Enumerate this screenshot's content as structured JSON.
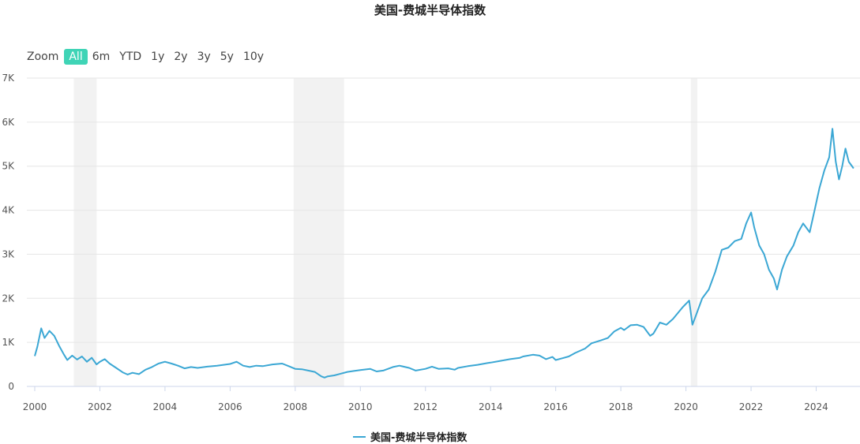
{
  "chart_data": {
    "type": "line",
    "title": "美国-费城半导体指数",
    "series": [
      {
        "name": "美国-费城半导体指数",
        "color": "#3ba7d4",
        "points": [
          [
            2000.0,
            690
          ],
          [
            2000.08,
            900
          ],
          [
            2000.2,
            1320
          ],
          [
            2000.3,
            1100
          ],
          [
            2000.45,
            1260
          ],
          [
            2000.6,
            1150
          ],
          [
            2000.75,
            920
          ],
          [
            2000.9,
            720
          ],
          [
            2001.0,
            600
          ],
          [
            2001.15,
            700
          ],
          [
            2001.3,
            610
          ],
          [
            2001.45,
            680
          ],
          [
            2001.6,
            560
          ],
          [
            2001.75,
            650
          ],
          [
            2001.9,
            500
          ],
          [
            2002.0,
            560
          ],
          [
            2002.15,
            620
          ],
          [
            2002.3,
            520
          ],
          [
            2002.5,
            420
          ],
          [
            2002.7,
            320
          ],
          [
            2002.85,
            270
          ],
          [
            2003.0,
            310
          ],
          [
            2003.2,
            280
          ],
          [
            2003.4,
            380
          ],
          [
            2003.6,
            440
          ],
          [
            2003.8,
            520
          ],
          [
            2004.0,
            560
          ],
          [
            2004.2,
            520
          ],
          [
            2004.4,
            470
          ],
          [
            2004.6,
            410
          ],
          [
            2004.8,
            440
          ],
          [
            2005.0,
            420
          ],
          [
            2005.3,
            450
          ],
          [
            2005.6,
            470
          ],
          [
            2005.8,
            490
          ],
          [
            2006.0,
            510
          ],
          [
            2006.2,
            560
          ],
          [
            2006.4,
            470
          ],
          [
            2006.6,
            440
          ],
          [
            2006.8,
            470
          ],
          [
            2007.0,
            460
          ],
          [
            2007.3,
            500
          ],
          [
            2007.6,
            520
          ],
          [
            2007.8,
            460
          ],
          [
            2008.0,
            400
          ],
          [
            2008.2,
            390
          ],
          [
            2008.4,
            360
          ],
          [
            2008.6,
            330
          ],
          [
            2008.8,
            230
          ],
          [
            2008.9,
            200
          ],
          [
            2009.0,
            230
          ],
          [
            2009.2,
            250
          ],
          [
            2009.4,
            290
          ],
          [
            2009.6,
            330
          ],
          [
            2009.8,
            350
          ],
          [
            2010.0,
            370
          ],
          [
            2010.3,
            400
          ],
          [
            2010.5,
            340
          ],
          [
            2010.7,
            360
          ],
          [
            2011.0,
            440
          ],
          [
            2011.2,
            470
          ],
          [
            2011.5,
            420
          ],
          [
            2011.7,
            360
          ],
          [
            2012.0,
            400
          ],
          [
            2012.2,
            450
          ],
          [
            2012.4,
            400
          ],
          [
            2012.7,
            410
          ],
          [
            2012.9,
            380
          ],
          [
            2013.0,
            420
          ],
          [
            2013.3,
            460
          ],
          [
            2013.6,
            490
          ],
          [
            2013.9,
            530
          ],
          [
            2014.0,
            540
          ],
          [
            2014.3,
            580
          ],
          [
            2014.6,
            620
          ],
          [
            2014.9,
            650
          ],
          [
            2015.0,
            680
          ],
          [
            2015.3,
            720
          ],
          [
            2015.5,
            700
          ],
          [
            2015.7,
            620
          ],
          [
            2015.9,
            670
          ],
          [
            2016.0,
            600
          ],
          [
            2016.2,
            640
          ],
          [
            2016.4,
            680
          ],
          [
            2016.6,
            760
          ],
          [
            2016.9,
            860
          ],
          [
            2017.1,
            980
          ],
          [
            2017.4,
            1050
          ],
          [
            2017.6,
            1100
          ],
          [
            2017.8,
            1250
          ],
          [
            2018.0,
            1330
          ],
          [
            2018.1,
            1280
          ],
          [
            2018.3,
            1390
          ],
          [
            2018.5,
            1400
          ],
          [
            2018.7,
            1350
          ],
          [
            2018.9,
            1150
          ],
          [
            2019.0,
            1200
          ],
          [
            2019.2,
            1450
          ],
          [
            2019.4,
            1400
          ],
          [
            2019.6,
            1530
          ],
          [
            2019.9,
            1800
          ],
          [
            2020.1,
            1950
          ],
          [
            2020.2,
            1400
          ],
          [
            2020.3,
            1600
          ],
          [
            2020.5,
            2000
          ],
          [
            2020.7,
            2200
          ],
          [
            2020.9,
            2600
          ],
          [
            2021.1,
            3100
          ],
          [
            2021.3,
            3150
          ],
          [
            2021.5,
            3300
          ],
          [
            2021.7,
            3350
          ],
          [
            2021.85,
            3700
          ],
          [
            2022.0,
            3950
          ],
          [
            2022.1,
            3600
          ],
          [
            2022.25,
            3200
          ],
          [
            2022.4,
            3000
          ],
          [
            2022.55,
            2650
          ],
          [
            2022.7,
            2450
          ],
          [
            2022.8,
            2200
          ],
          [
            2022.95,
            2650
          ],
          [
            2023.1,
            2950
          ],
          [
            2023.3,
            3200
          ],
          [
            2023.45,
            3500
          ],
          [
            2023.6,
            3700
          ],
          [
            2023.8,
            3500
          ],
          [
            2023.95,
            4000
          ],
          [
            2024.1,
            4500
          ],
          [
            2024.25,
            4900
          ],
          [
            2024.4,
            5200
          ],
          [
            2024.5,
            5850
          ],
          [
            2024.6,
            5100
          ],
          [
            2024.7,
            4700
          ],
          [
            2024.8,
            5000
          ],
          [
            2024.9,
            5400
          ],
          [
            2025.0,
            5100
          ],
          [
            2025.15,
            4950
          ]
        ]
      }
    ],
    "xticks": [
      "2000",
      "2002",
      "2004",
      "2006",
      "2008",
      "2010",
      "2012",
      "2014",
      "2016",
      "2018",
      "2020",
      "2022",
      "2024"
    ],
    "yticks": [
      "0",
      "1K",
      "2K",
      "3K",
      "4K",
      "5K",
      "6K",
      "7K"
    ],
    "xlim": [
      2000,
      2025.2
    ],
    "ylim": [
      0,
      7000
    ],
    "recession_bands": [
      [
        2001.2,
        2001.9
      ],
      [
        2007.95,
        2009.5
      ],
      [
        2020.15,
        2020.35
      ]
    ],
    "grid": true,
    "legend": "bottom-center"
  },
  "zoom": {
    "label": "Zoom",
    "buttons": [
      "All",
      "6m",
      "YTD",
      "1y",
      "2y",
      "3y",
      "5y",
      "10y"
    ],
    "active": "All"
  }
}
